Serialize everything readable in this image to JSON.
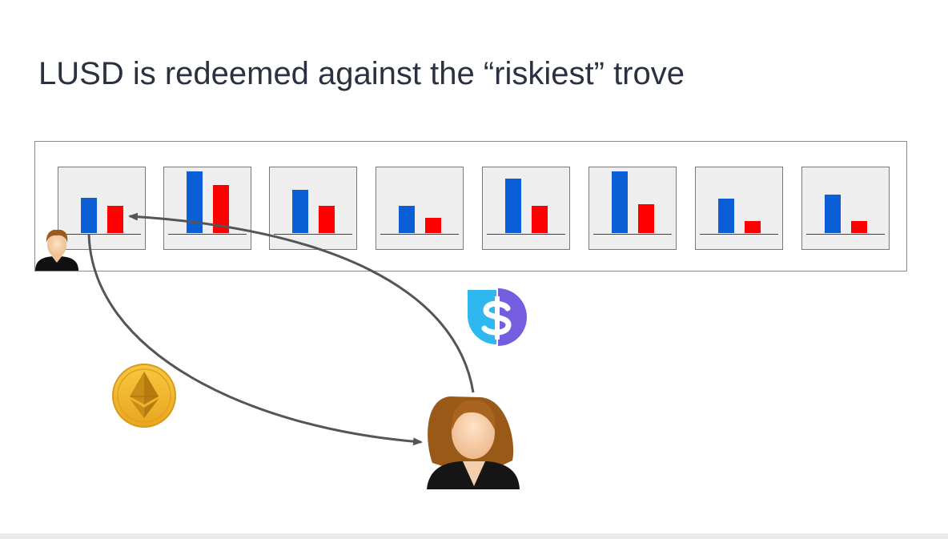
{
  "slide": {
    "title": "LUSD is redeemed against the “riskiest” trove"
  },
  "troves": [
    {
      "collateral": 1.3,
      "debt": 1.0
    },
    {
      "collateral": 2.25,
      "debt": 1.75
    },
    {
      "collateral": 1.6,
      "debt": 1.0
    },
    {
      "collateral": 1.0,
      "debt": 0.55
    },
    {
      "collateral": 2.0,
      "debt": 1.0
    },
    {
      "collateral": 2.25,
      "debt": 1.05
    },
    {
      "collateral": 1.25,
      "debt": 0.45
    },
    {
      "collateral": 1.4,
      "debt": 0.45
    }
  ],
  "colors": {
    "collateral": "#0a5fd7",
    "debt": "#ff0000",
    "arrow": "#555555",
    "lusd_light": "#2fb8f0",
    "lusd_dark": "#745ddf",
    "eth_coin": "#f4b731",
    "title": "#2b3140"
  },
  "icons": {
    "borrower": "male-user-icon",
    "redeemer": "female-user-icon",
    "lusd": "lusd-logo-icon",
    "eth": "ethereum-coin-icon"
  }
}
